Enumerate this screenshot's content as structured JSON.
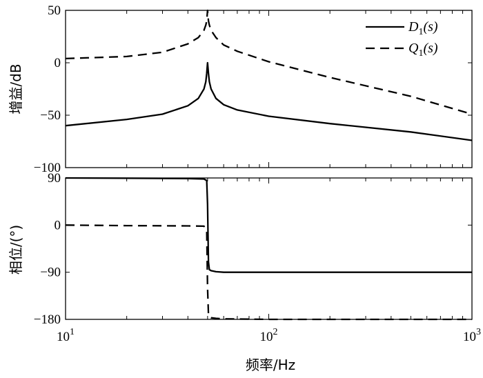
{
  "chart_data": [
    {
      "type": "line",
      "panel": "magnitude",
      "title": "",
      "ylabel": "增益/dB",
      "xlabel": "",
      "xscale": "log",
      "xlim": [
        10,
        1000
      ],
      "ylim": [
        -100,
        50
      ],
      "yticks": [
        "50",
        "0",
        "-50",
        "-100"
      ],
      "grid": false,
      "legend": {
        "placement": "top-right",
        "entries": [
          {
            "name": "D",
            "sub": "1",
            "arg": "(s)",
            "style": "solid"
          },
          {
            "name": "Q",
            "sub": "1",
            "arg": "(s)",
            "style": "dashed"
          }
        ]
      },
      "series": [
        {
          "name": "D1(s)",
          "style": "solid",
          "x": [
            10,
            20,
            30,
            40,
            45,
            48,
            49,
            49.5,
            50,
            50.5,
            51,
            52,
            55,
            60,
            70,
            100,
            200,
            500,
            1000
          ],
          "y": [
            -60,
            -54,
            -49,
            -41,
            -34,
            -25,
            -18,
            -10,
            0,
            -10,
            -18,
            -25,
            -34,
            -40,
            -45,
            -51,
            -58,
            -66,
            -74
          ]
        },
        {
          "name": "Q1(s)",
          "style": "dashed",
          "x": [
            10,
            20,
            30,
            40,
            45,
            48,
            49,
            49.5,
            50,
            50.5,
            51,
            52,
            55,
            60,
            70,
            100,
            200,
            500,
            1000
          ],
          "y": [
            4,
            6,
            10,
            18,
            24,
            31,
            36,
            40,
            50,
            40,
            36,
            31,
            24,
            17,
            11,
            1,
            -14,
            -32,
            -49
          ]
        }
      ]
    },
    {
      "type": "line",
      "panel": "phase",
      "title": "",
      "ylabel": "相位/(°)",
      "xlabel": "频率/Hz",
      "xscale": "log",
      "xlim": [
        10,
        1000
      ],
      "ylim": [
        -180,
        90
      ],
      "yticks": [
        "90",
        "0",
        "-90",
        "-180"
      ],
      "xticks": [
        {
          "value": 10,
          "base": "10",
          "exp": "1"
        },
        {
          "value": 100,
          "base": "10",
          "exp": "2"
        },
        {
          "value": 1000,
          "base": "10",
          "exp": "3"
        }
      ],
      "grid": false,
      "series": [
        {
          "name": "D1(s)",
          "style": "solid",
          "x": [
            10,
            20,
            40,
            48,
            49.5,
            50,
            50.5,
            51,
            52,
            55,
            60,
            100,
            1000
          ],
          "y": [
            90,
            89.5,
            89,
            88,
            85,
            40,
            -70,
            -85,
            -87,
            -89,
            -90,
            -90,
            -90
          ]
        },
        {
          "name": "Q1(s)",
          "style": "dashed",
          "x": [
            10,
            20,
            40,
            48,
            49.5,
            50,
            50.5,
            51,
            52,
            55,
            60,
            100,
            1000
          ],
          "y": [
            0,
            -1,
            -1.5,
            -2,
            -10,
            -120,
            -170,
            -175,
            -177,
            -178,
            -179,
            -180,
            -180
          ]
        }
      ]
    }
  ]
}
